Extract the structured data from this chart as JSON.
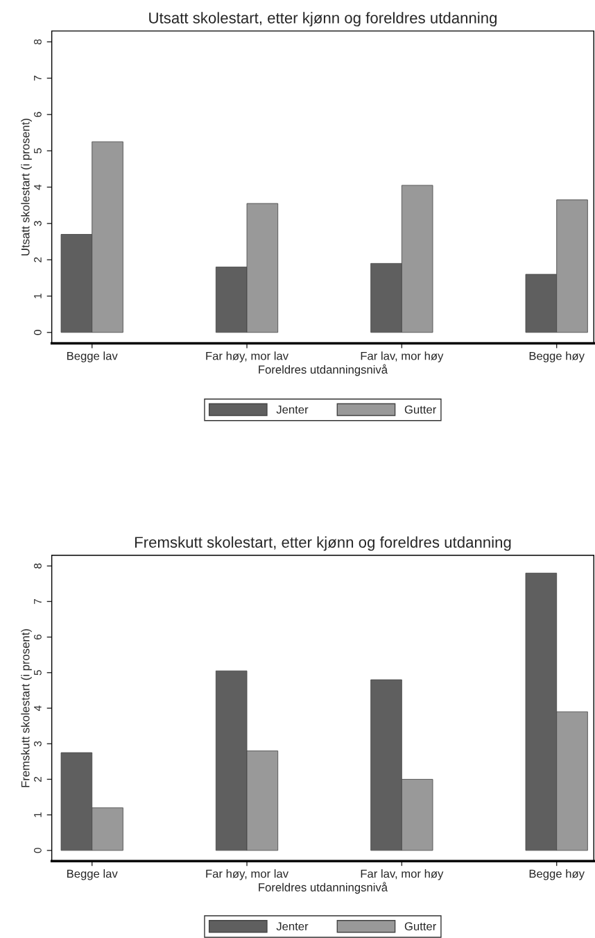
{
  "chart_data": [
    {
      "type": "bar",
      "title": "Utsatt skolestart, etter kjønn og foreldres utdanning",
      "xlabel": "Foreldres utdanningsnivå",
      "ylabel": "Utsatt skolestart (i prosent)",
      "categories": [
        "Begge lav",
        "Far høy, mor lav",
        "Far lav, mor høy",
        "Begge høy"
      ],
      "series": [
        {
          "name": "Jenter",
          "color": "#5f5f5f",
          "values": [
            2.7,
            1.8,
            1.9,
            1.6
          ]
        },
        {
          "name": "Gutter",
          "color": "#999999",
          "values": [
            5.25,
            3.55,
            4.05,
            3.65
          ]
        }
      ],
      "ylim": [
        -0.3,
        8.3
      ],
      "yticks": [
        0,
        1,
        2,
        3,
        4,
        5,
        6,
        7,
        8
      ],
      "grid": false,
      "legend": "bottom"
    },
    {
      "type": "bar",
      "title": "Fremskutt skolestart, etter kjønn og foreldres utdanning",
      "xlabel": "Foreldres utdanningsnivå",
      "ylabel": "Fremskutt skolestart (i prosent)",
      "categories": [
        "Begge lav",
        "Far høy, mor lav",
        "Far lav, mor høy",
        "Begge høy"
      ],
      "series": [
        {
          "name": "Jenter",
          "color": "#5f5f5f",
          "values": [
            2.75,
            5.05,
            4.8,
            7.8
          ]
        },
        {
          "name": "Gutter",
          "color": "#999999",
          "values": [
            1.2,
            2.8,
            2.0,
            3.9
          ]
        }
      ],
      "ylim": [
        -0.3,
        8.3
      ],
      "yticks": [
        0,
        1,
        2,
        3,
        4,
        5,
        6,
        7,
        8
      ],
      "grid": false,
      "legend": "bottom"
    }
  ]
}
